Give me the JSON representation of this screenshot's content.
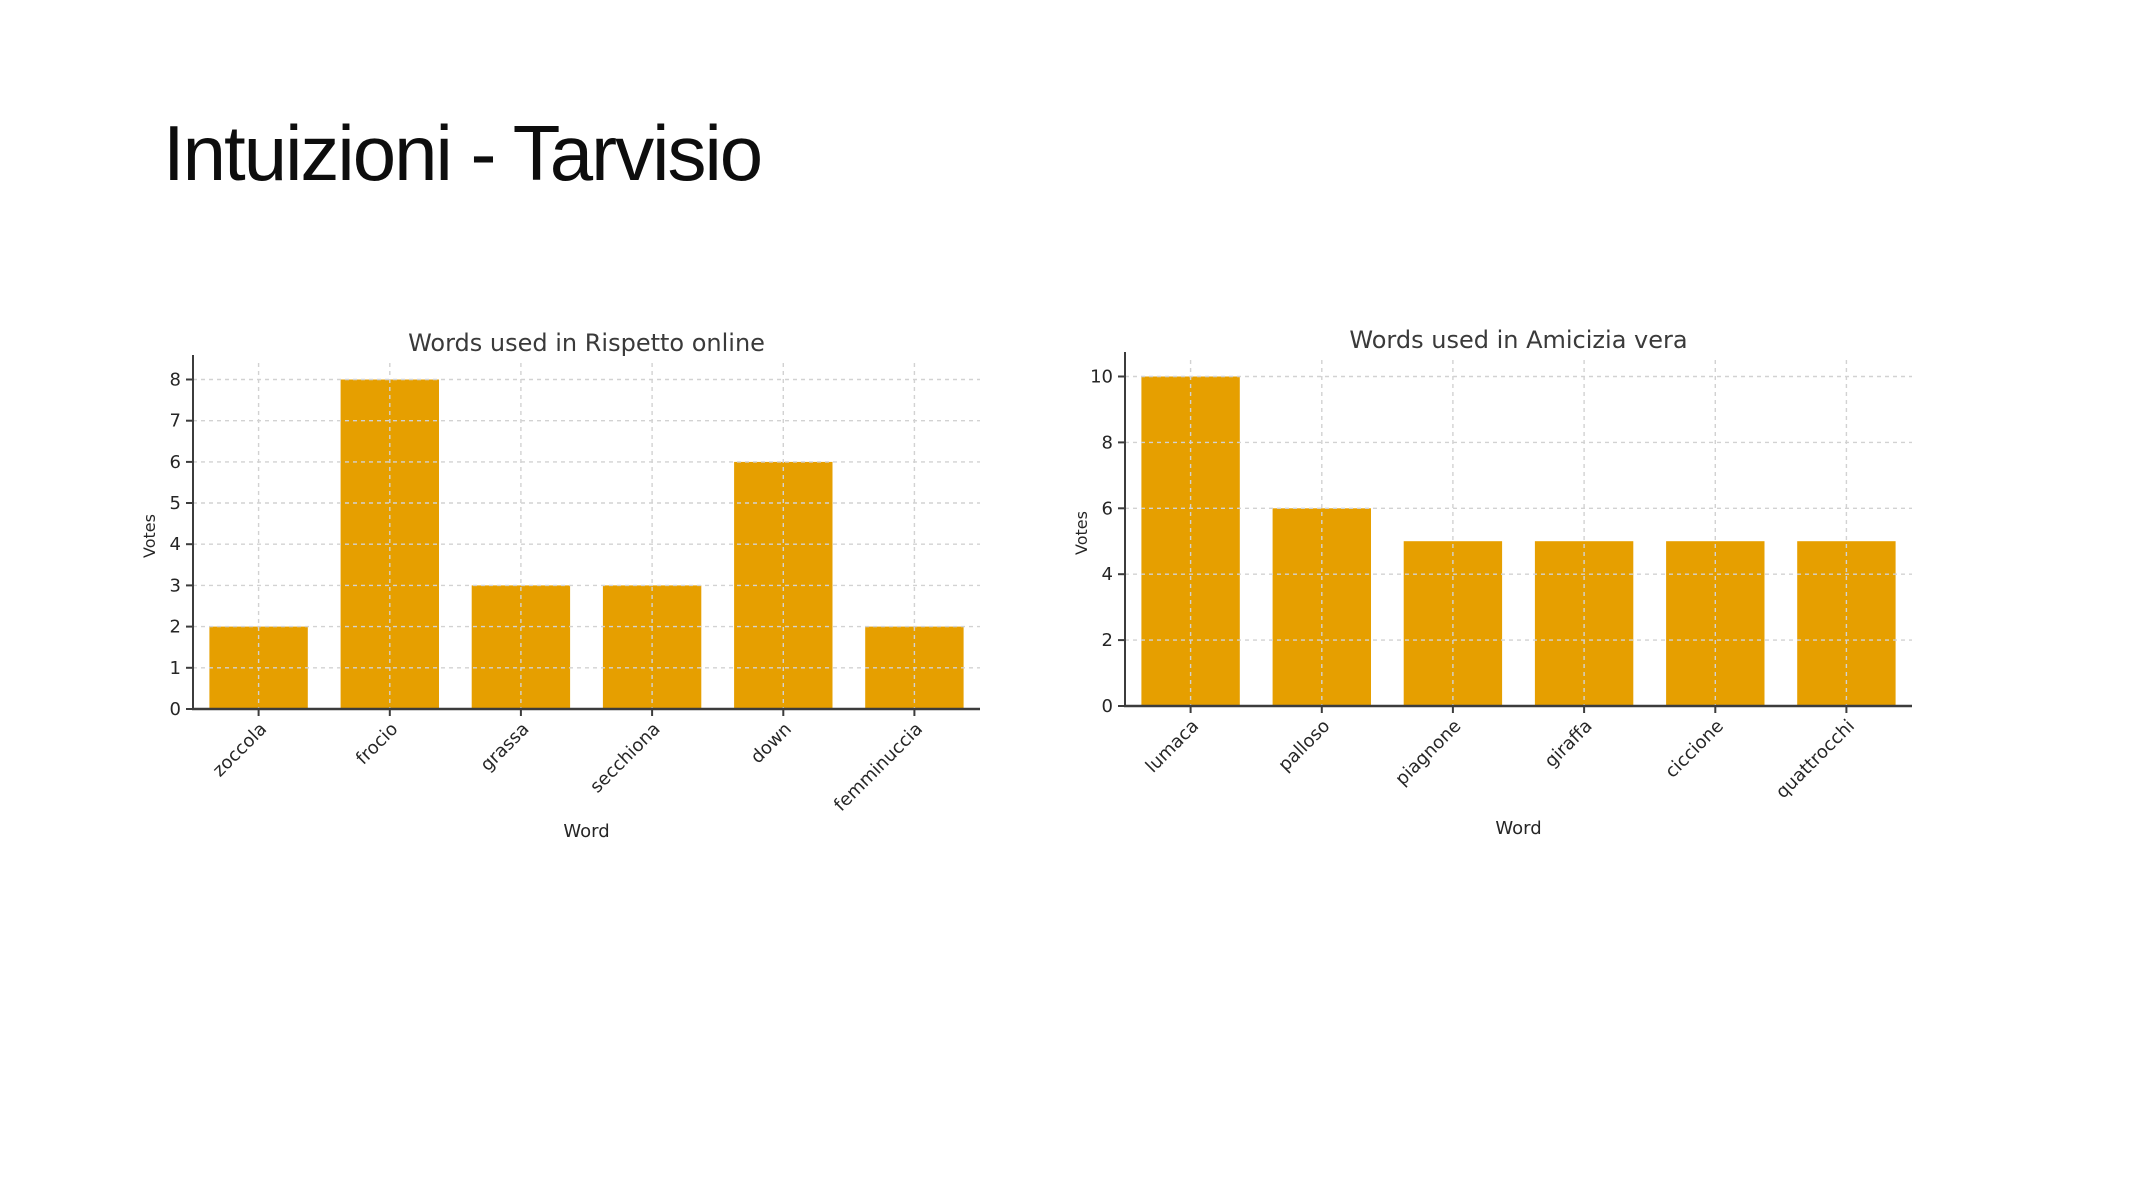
{
  "slide": {
    "title": "Intuizioni - Tarvisio"
  },
  "colors": {
    "background": "#ffffff",
    "bar": "#E69F00",
    "grid": "#d2d2d2",
    "spine": "#3c3c3c",
    "tick_text": "#262626",
    "title_text": "#3a3a3a"
  },
  "chart_data": [
    {
      "type": "bar",
      "title": "Words used in Rispetto online",
      "xlabel": "Word",
      "ylabel": "Votes",
      "categories": [
        "zoccola",
        "frocio",
        "grassa",
        "secchiona",
        "down",
        "femminuccia"
      ],
      "values": [
        2,
        8,
        3,
        3,
        6,
        2
      ],
      "yticks": [
        0,
        1,
        2,
        3,
        4,
        5,
        6,
        7,
        8
      ],
      "ylim": [
        0,
        8.4
      ],
      "grid": true,
      "legend_position": "none",
      "x_tick_rotation_deg": 45
    },
    {
      "type": "bar",
      "title": "Words used in Amicizia vera",
      "xlabel": "Word",
      "ylabel": "Votes",
      "categories": [
        "lumaca",
        "palloso",
        "piagnone",
        "giraffa",
        "ciccione",
        "quattrocchi"
      ],
      "values": [
        10,
        6,
        5,
        5,
        5,
        5
      ],
      "yticks": [
        0,
        2,
        4,
        6,
        8,
        10
      ],
      "ylim": [
        0,
        10.5
      ],
      "grid": true,
      "legend_position": "none",
      "x_tick_rotation_deg": 45
    }
  ]
}
